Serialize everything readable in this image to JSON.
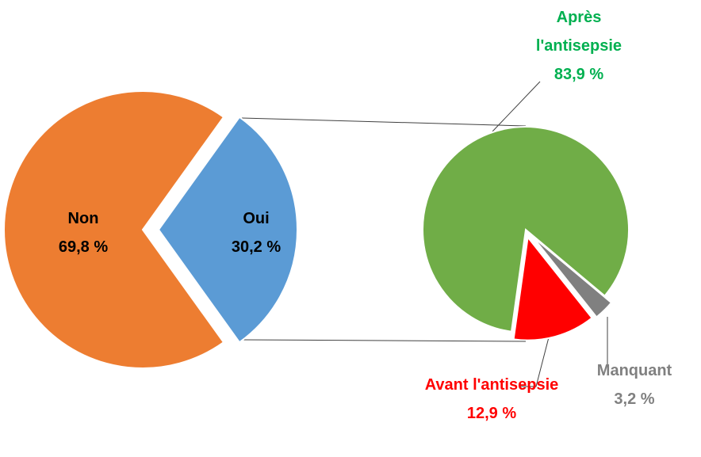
{
  "chart_data": [
    {
      "type": "pie",
      "categories": [
        "Non",
        "Oui"
      ],
      "values": [
        69.8,
        30.2
      ],
      "value_labels": [
        "69,8 %",
        "30,2 %"
      ],
      "colors": [
        "#ed7d31",
        "#5b9bd5"
      ]
    },
    {
      "type": "pie",
      "categories": [
        "Après l'antisepsie",
        "Avant l'antisepsie",
        "Manquant"
      ],
      "values": [
        83.9,
        12.9,
        3.2
      ],
      "value_labels": [
        "83,9 %",
        "12,9 %",
        "3,2 %"
      ],
      "colors": [
        "#70ad47",
        "#ff0000",
        "#808080"
      ]
    }
  ]
}
